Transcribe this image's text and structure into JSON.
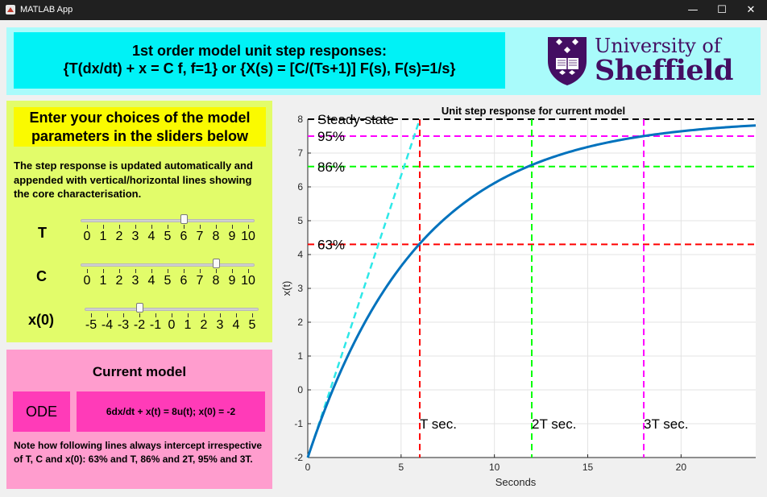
{
  "window": {
    "title": "MATLAB App",
    "min_glyph": "—",
    "max_glyph": "☐",
    "close_glyph": "✕"
  },
  "header": {
    "line1": "1st order model unit step responses:",
    "line2": "{T(dx/dt) + x = C f,  f=1} or {X(s) = [C/(Ts+1)] F(s), F(s)=1/s}",
    "logo_line1": "University of",
    "logo_line2": "Sheffield",
    "logo_color": "#440e62"
  },
  "params": {
    "title": "Enter your choices of the model parameters in the sliders below",
    "description": "The step response is updated automatically and appended with vertical/horizontal lines showing the core characterisation.",
    "sliders": [
      {
        "name": "T",
        "label": "T",
        "min": 0,
        "max": 10,
        "value": 6,
        "ticks": [
          "0",
          "1",
          "2",
          "3",
          "4",
          "5",
          "6",
          "7",
          "8",
          "9",
          "10"
        ]
      },
      {
        "name": "C",
        "label": "C",
        "min": 0,
        "max": 10,
        "value": 8,
        "ticks": [
          "0",
          "1",
          "2",
          "3",
          "4",
          "5",
          "6",
          "7",
          "8",
          "9",
          "10"
        ]
      },
      {
        "name": "x0",
        "label": "x(0)",
        "min": -5,
        "max": 5,
        "value": -2,
        "ticks": [
          "-5",
          "-4",
          "-3",
          "-2",
          "-1",
          "0",
          "1",
          "2",
          "3",
          "4",
          "5"
        ]
      }
    ]
  },
  "model": {
    "title": "Current model",
    "ode_label": "ODE",
    "equation": "6dx/dt + x(t) = 8u(t); x(0) = -2",
    "note": "Note how following lines always intercept irrespective of T, C and x(0): 63% and T, 86% and 2T, 95% and 3T."
  },
  "chart_data": {
    "type": "line",
    "title": "Unit step response for current model",
    "xlabel": "Seconds",
    "ylabel": "x(t)",
    "xlim": [
      0,
      24
    ],
    "ylim": [
      -2,
      8
    ],
    "xticks": [
      0,
      5,
      10,
      15,
      20
    ],
    "yticks": [
      -2,
      -1,
      0,
      1,
      2,
      3,
      4,
      5,
      6,
      7,
      8
    ],
    "grid": true,
    "series": [
      {
        "values_formula": "8 - 10*exp(-t/6)",
        "color": "#0072bd",
        "x": [
          0,
          1,
          2,
          3,
          4,
          5,
          6,
          7,
          8,
          9,
          10,
          11,
          12,
          13,
          14,
          15,
          16,
          17,
          18,
          19,
          20,
          21,
          22,
          23,
          24
        ],
        "y": [
          -2,
          -0.46,
          0.83,
          1.93,
          2.87,
          3.65,
          4.32,
          4.89,
          5.36,
          5.77,
          6.11,
          6.4,
          6.65,
          6.85,
          7.03,
          7.18,
          7.31,
          7.41,
          7.5,
          7.58,
          7.64,
          7.7,
          7.74,
          7.78,
          7.82
        ]
      }
    ],
    "annotations": [
      {
        "kind": "hline",
        "y": 8,
        "color": "#000000",
        "label": "Steady-state"
      },
      {
        "kind": "hline",
        "y": 7.5,
        "color": "#ff00ff",
        "label": "95%"
      },
      {
        "kind": "hline",
        "y": 6.6,
        "color": "#00ff00",
        "label": "86%"
      },
      {
        "kind": "hline",
        "y": 4.3,
        "color": "#ff0000",
        "label": "63%"
      },
      {
        "kind": "vline",
        "x": 6,
        "color": "#ff0000",
        "label": "T sec."
      },
      {
        "kind": "vline",
        "x": 12,
        "color": "#00ff00",
        "label": "2T sec."
      },
      {
        "kind": "vline",
        "x": 18,
        "color": "#ff00ff",
        "label": "3T sec."
      },
      {
        "kind": "tangent",
        "x": [
          0,
          6
        ],
        "y": [
          -2,
          8
        ],
        "color": "#2ee8e8"
      }
    ]
  }
}
